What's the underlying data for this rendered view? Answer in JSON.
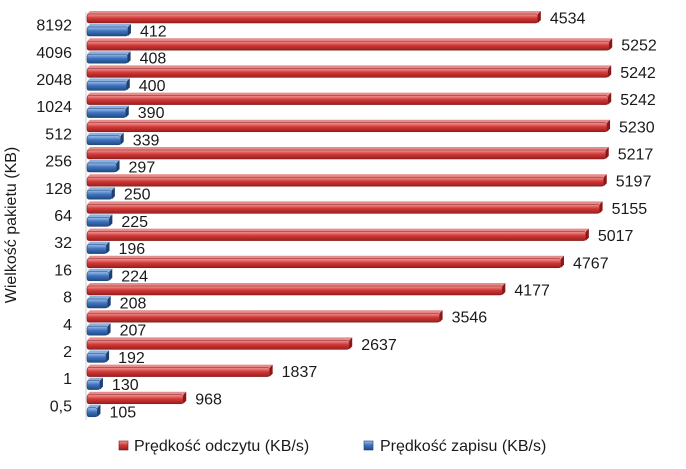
{
  "chart_data": {
    "type": "bar",
    "orientation": "horizontal",
    "ylabel": "Wielkość  pakietu (KB)",
    "categories": [
      "8192",
      "4096",
      "2048",
      "1024",
      "512",
      "256",
      "128",
      "64",
      "32",
      "16",
      "8",
      "4",
      "2",
      "1",
      "0,5"
    ],
    "series": [
      {
        "name": "Prędkość odczytu (KB/s)",
        "color": "#c0282a",
        "values": [
          4534,
          5252,
          5242,
          5242,
          5230,
          5217,
          5197,
          5155,
          5017,
          4767,
          4177,
          3546,
          2637,
          1837,
          968
        ]
      },
      {
        "name": "Prędkość zapisu (KB/s)",
        "color": "#2f5f9f",
        "values": [
          412,
          408,
          400,
          390,
          339,
          297,
          250,
          225,
          196,
          224,
          208,
          207,
          192,
          130,
          105
        ]
      }
    ],
    "xlim": [
      0,
      5300
    ],
    "grid": false,
    "legend": "bottom"
  }
}
